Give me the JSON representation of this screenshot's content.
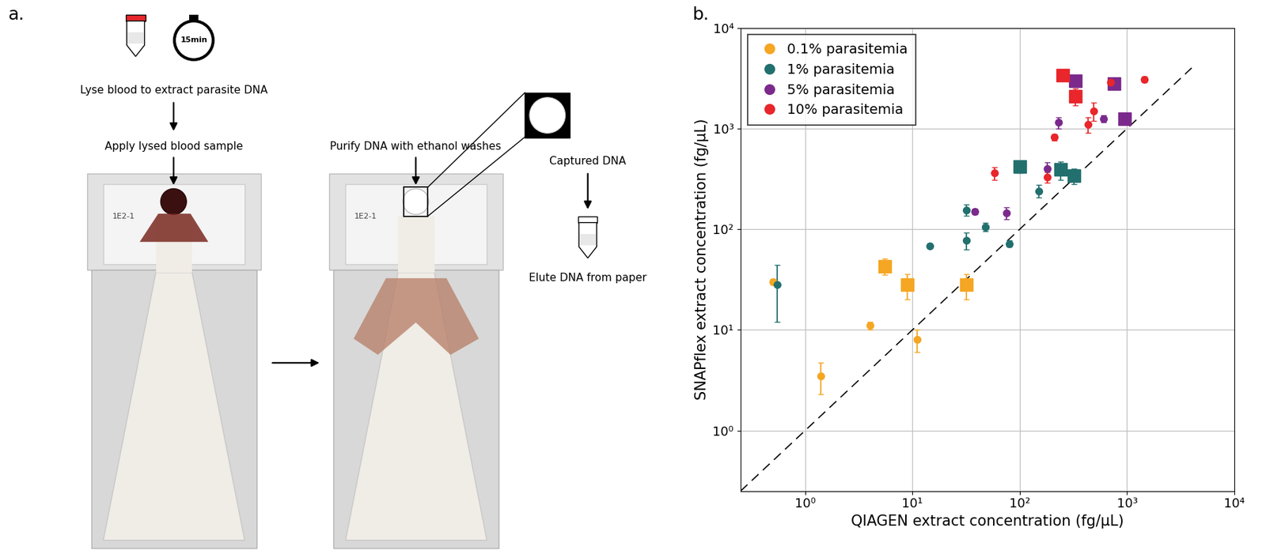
{
  "diagram": {
    "panel_label": "a.",
    "timer": "15min",
    "steps": {
      "lyse": "Lyse blood to extract parasite DNA",
      "apply": "Apply lysed blood sample",
      "purify": "Purify DNA with ethanol washes",
      "captured": "Captured DNA",
      "elute": "Elute DNA from paper"
    },
    "sample_label": "1E2-1"
  },
  "chart_data": {
    "type": "scatter",
    "panel_label": "b.",
    "x_label": "QIAGEN extract concentration (fg/μL)",
    "y_label": "SNAPflex extract concentration (fg/μL)",
    "log": true,
    "grid": true,
    "legend": "upper left",
    "xlim": [
      0.25,
      10000
    ],
    "ylim": [
      0.25,
      10000
    ],
    "xticks": [
      {
        "value": 1,
        "label": "10⁰"
      },
      {
        "value": 10,
        "label": "10¹"
      },
      {
        "value": 100,
        "label": "10²"
      },
      {
        "value": 1000,
        "label": "10³"
      },
      {
        "value": 10000,
        "label": "10⁴"
      }
    ],
    "yticks": [
      {
        "value": 1,
        "label": "10⁰"
      },
      {
        "value": 10,
        "label": "10¹"
      },
      {
        "value": 100,
        "label": "10²"
      },
      {
        "value": 1000,
        "label": "10³"
      },
      {
        "value": 10000,
        "label": "10⁴"
      }
    ],
    "reference_line": {
      "x": [
        0.25,
        4000
      ],
      "values": [
        0.25,
        4000
      ],
      "line_style": "dashed",
      "color": "#000000"
    },
    "series": [
      {
        "name": "0.1% parasitemia",
        "color": "#f5a623",
        "groups": [
          {
            "marker": "circle",
            "x": [
              0.5,
              4,
              11,
              1.4
            ],
            "values": [
              30,
              11,
              8,
              3.5
            ],
            "errors": [
              2,
              1,
              2,
              1.2
            ]
          },
          {
            "marker": "square",
            "x": [
              5.5,
              9,
              32
            ],
            "values": [
              43,
              28,
              28
            ],
            "errors": [
              8,
              8,
              8
            ]
          }
        ]
      },
      {
        "name": "1% parasitemia",
        "color": "#22706e",
        "groups": [
          {
            "marker": "circle",
            "x": [
              0.55,
              14.5,
              32,
              32,
              48,
              80,
              150
            ],
            "values": [
              28,
              68,
              155,
              78,
              105,
              72,
              240
            ],
            "errors": [
              16,
              3,
              20,
              15,
              10,
              5,
              35
            ]
          },
          {
            "marker": "square",
            "x": [
              100,
              240,
              320
            ],
            "values": [
              420,
              390,
              340
            ],
            "errors": [
              60,
              80,
              60
            ]
          }
        ]
      },
      {
        "name": "5% parasitemia",
        "color": "#7b2a8c",
        "groups": [
          {
            "marker": "circle",
            "x": [
              38,
              75,
              180,
              230,
              600
            ],
            "values": [
              150,
              145,
              400,
              1150,
              1250
            ],
            "errors": [
              10,
              20,
              60,
              150,
              100
            ]
          },
          {
            "marker": "square",
            "x": [
              330,
              760,
              950
            ],
            "values": [
              3000,
              2800,
              1250
            ],
            "errors": [
              300,
              350,
              150
            ]
          }
        ]
      },
      {
        "name": "10% parasitemia",
        "color": "#e8262b",
        "groups": [
          {
            "marker": "circle",
            "x": [
              58,
              180,
              210,
              430,
              490,
              700,
              1450
            ],
            "values": [
              360,
              330,
              820,
              1100,
              1500,
              2900,
              3100
            ],
            "errors": [
              50,
              40,
              60,
              200,
              300,
              100,
              200
            ]
          },
          {
            "marker": "square",
            "x": [
              250,
              330
            ],
            "values": [
              3400,
              2100
            ],
            "errors": [
              300,
              400
            ]
          }
        ]
      }
    ]
  }
}
